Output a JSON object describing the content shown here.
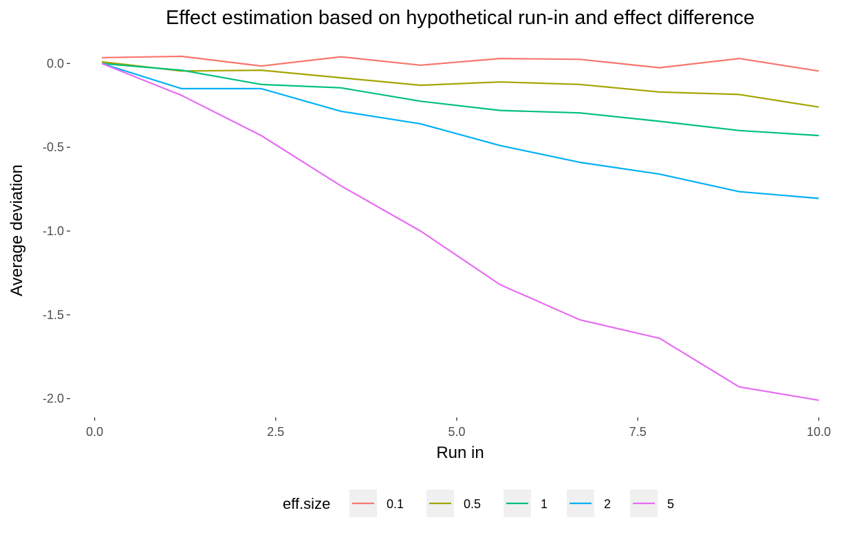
{
  "chart_data": {
    "type": "line",
    "title": "Effect estimation based on hypothetical run-in and effect difference",
    "xlabel": "Run in",
    "ylabel": "Average deviation",
    "xlim": [
      -0.3,
      10.3
    ],
    "ylim": [
      -2.1,
      0.1
    ],
    "x_ticks": [
      0,
      2.5,
      5,
      7.5,
      10
    ],
    "x_tick_labels": [
      "0.0",
      "2.5",
      "5.0",
      "7.5",
      "10.0"
    ],
    "y_ticks": [
      0,
      -0.5,
      -1,
      -1.5,
      -2
    ],
    "y_tick_labels": [
      "0.0",
      "-0.5",
      "-1.0",
      "-1.5",
      "-2.0"
    ],
    "grid": false,
    "legend": {
      "title": "eff.size",
      "position": "bottom"
    },
    "x": [
      0.1,
      1.2,
      2.3,
      3.4,
      4.5,
      5.6,
      6.7,
      7.8,
      8.9,
      10.0
    ],
    "series": [
      {
        "name": "0.1",
        "color": "#F8766D",
        "values": [
          0.035,
          0.043,
          -0.015,
          0.04,
          -0.01,
          0.03,
          0.025,
          -0.025,
          0.03,
          -0.045
        ]
      },
      {
        "name": "0.5",
        "color": "#A3A500",
        "values": [
          0.01,
          -0.045,
          -0.04,
          -0.085,
          -0.13,
          -0.11,
          -0.125,
          -0.17,
          -0.185,
          -0.26
        ]
      },
      {
        "name": "1",
        "color": "#00BF7D",
        "values": [
          0.0,
          -0.04,
          -0.125,
          -0.145,
          -0.225,
          -0.28,
          -0.295,
          -0.345,
          -0.4,
          -0.43
        ]
      },
      {
        "name": "2",
        "color": "#00B0F6",
        "values": [
          0.0,
          -0.15,
          -0.15,
          -0.285,
          -0.36,
          -0.49,
          -0.59,
          -0.66,
          -0.765,
          -0.805
        ]
      },
      {
        "name": "5",
        "color": "#E76BF3",
        "values": [
          0.0,
          -0.19,
          -0.43,
          -0.73,
          -1.0,
          -1.32,
          -1.53,
          -1.64,
          -1.93,
          -2.01
        ]
      }
    ]
  }
}
